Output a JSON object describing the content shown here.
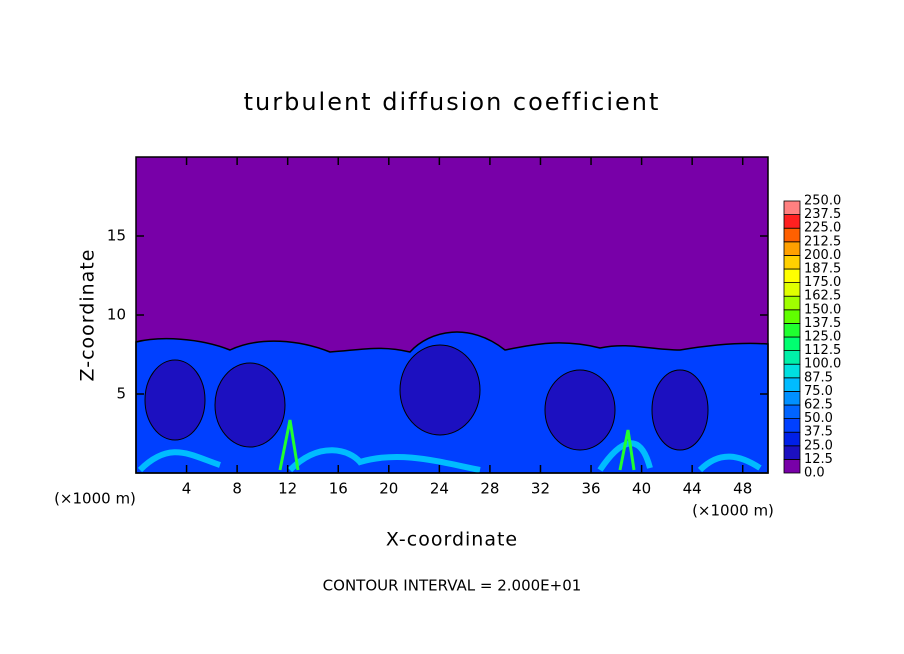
{
  "chart_data": {
    "type": "contour",
    "title": "turbulent diffusion coefficient",
    "x_label": "X-coordinate",
    "y_label": "Z-coordinate",
    "x_unit_label": "(×1000 m)",
    "footer": "CONTOUR INTERVAL = 2.000E+01",
    "xlim": [
      0,
      50
    ],
    "ylim": [
      0,
      20
    ],
    "xticks": [
      4,
      8,
      12,
      16,
      20,
      24,
      28,
      32,
      36,
      40,
      44,
      48
    ],
    "yticks": [
      5,
      10,
      15
    ],
    "grid": false,
    "colorbar": {
      "lim": [
        0,
        250
      ],
      "ticks": [
        {
          "value": 0,
          "label": "0.0"
        },
        12.5,
        {
          "value": 25,
          "label": "25.0"
        },
        37.5,
        {
          "value": 50,
          "label": "50.0"
        },
        62.5,
        {
          "value": 75,
          "label": "75.0"
        },
        87.5,
        {
          "value": 100,
          "label": "100.0"
        },
        112.5,
        {
          "value": 125,
          "label": "125.0"
        },
        137.5,
        {
          "value": 150,
          "label": "150.0"
        },
        162.5,
        {
          "value": 175,
          "label": "175.0"
        },
        187.5,
        {
          "value": 200,
          "label": "200.0"
        },
        212.5,
        {
          "value": 225,
          "label": "225.0"
        },
        237.5,
        {
          "value": 250,
          "label": "250.0"
        }
      ],
      "colors": [
        "#7800a8",
        "#1c10c0",
        "#0020e8",
        "#0040ff",
        "#0064ff",
        "#0090ff",
        "#00bcff",
        "#00e0e0",
        "#00f0a8",
        "#00ff70",
        "#20ff30",
        "#60ff00",
        "#a0ff00",
        "#e0ff00",
        "#ffff00",
        "#ffd000",
        "#ffa000",
        "#ff6000",
        "#ff2020",
        "#ff8080"
      ]
    }
  }
}
